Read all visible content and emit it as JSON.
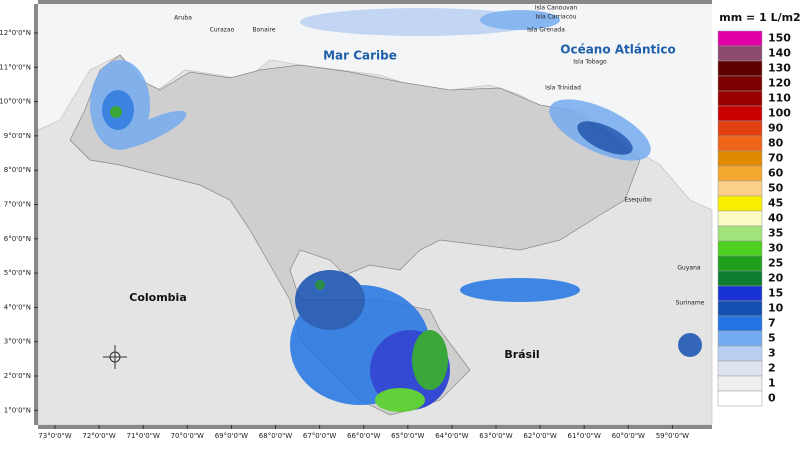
{
  "map": {
    "latitude_labels": [
      "12°0'0\"N",
      "11°0'0\"N",
      "10°0'0\"N",
      "9°0'0\"N",
      "8°0'0\"N",
      "7°0'0\"N",
      "6°0'0\"N",
      "5°0'0\"N",
      "4°0'0\"N",
      "3°0'0\"N",
      "2°0'0\"N",
      "1°0'0\"N"
    ],
    "longitude_labels": [
      "73°0'0\"W",
      "72°0'0\"W",
      "71°0'0\"W",
      "70°0'0\"W",
      "69°0'0\"W",
      "68°0'0\"W",
      "67°0'0\"W",
      "66°0'0\"W",
      "65°0'0\"W",
      "64°0'0\"W",
      "63°0'0\"W",
      "62°0'0\"W",
      "61°0'0\"W",
      "60°0'0\"W",
      "59°0'0\"W"
    ],
    "places": {
      "aruba": "Aruba",
      "curazao": "Curazao",
      "bonaire": "Bonaire",
      "canouvan": "Isla Canouvan",
      "carriacou": "Isla Carriacou",
      "grenada": "Isla Grenada",
      "mar_caribe": "Mar Caribe",
      "oceano": "Océano Atlántico",
      "tobago": "Isla Tobago",
      "trinidad": "Isla Trinidad",
      "colombia": "Colombia",
      "brasil": "Brásil",
      "guyana": "Guyana",
      "suriname": "Suriname",
      "esequibo": "Esequibo"
    }
  },
  "legend": {
    "title": "mm = 1 L/m2",
    "entries": [
      {
        "label": "150",
        "color": "#e000a8"
      },
      {
        "label": "140",
        "color": "#8c4a6c"
      },
      {
        "label": "130",
        "color": "#5e0000"
      },
      {
        "label": "120",
        "color": "#7c0000"
      },
      {
        "label": "110",
        "color": "#9a0000"
      },
      {
        "label": "100",
        "color": "#c80000"
      },
      {
        "label": "90",
        "color": "#e04010"
      },
      {
        "label": "80",
        "color": "#f06418"
      },
      {
        "label": "70",
        "color": "#e08a00"
      },
      {
        "label": "60",
        "color": "#f5a830"
      },
      {
        "label": "50",
        "color": "#fccf88"
      },
      {
        "label": "45",
        "color": "#f8f000"
      },
      {
        "label": "40",
        "color": "#fbfbc4"
      },
      {
        "label": "35",
        "color": "#a2e27a"
      },
      {
        "label": "30",
        "color": "#4ed020"
      },
      {
        "label": "25",
        "color": "#1ea01e"
      },
      {
        "label": "20",
        "color": "#0e7e30"
      },
      {
        "label": "15",
        "color": "#1832d4"
      },
      {
        "label": "10",
        "color": "#1450b0"
      },
      {
        "label": "7",
        "color": "#2274e4"
      },
      {
        "label": "5",
        "color": "#74aaf0"
      },
      {
        "label": "3",
        "color": "#b9cff2"
      },
      {
        "label": "2",
        "color": "#dfe5ee"
      },
      {
        "label": "1",
        "color": "#efefef"
      },
      {
        "label": "0",
        "color": "#ffffff"
      }
    ]
  }
}
